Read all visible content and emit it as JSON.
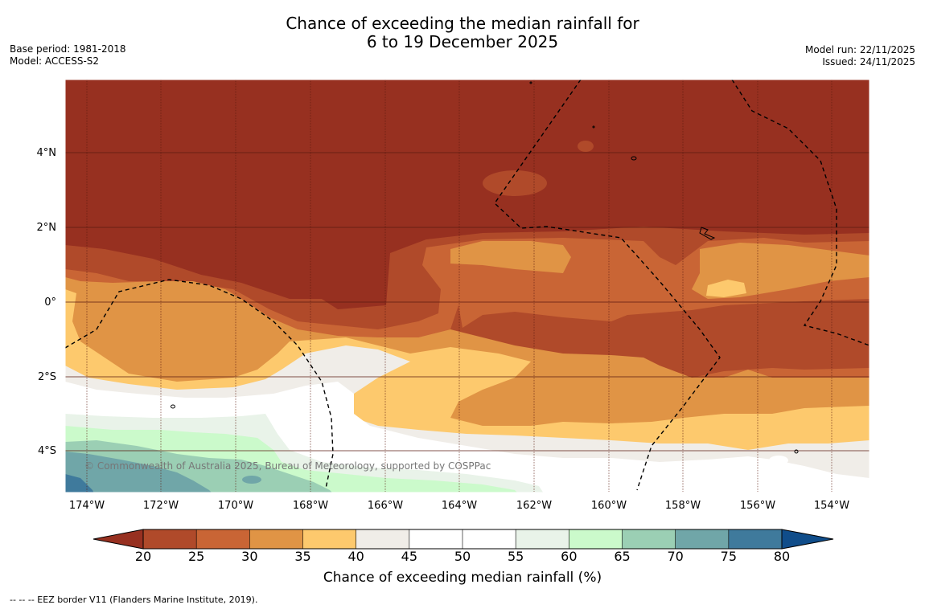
{
  "header": {
    "title_line1": "Chance of exceeding the median rainfall for",
    "title_line2": "6 to 19 December 2025",
    "base_period": "Base period: 1981-2018",
    "model": "Model: ACCESS-S2",
    "model_run": "Model run: 22/11/2025",
    "issued": "Issued: 24/11/2025"
  },
  "map": {
    "lat_labels": [
      "4°N",
      "2°N",
      "0°",
      "2°S",
      "4°S"
    ],
    "lon_labels": [
      "174°W",
      "172°W",
      "170°W",
      "168°W",
      "166°W",
      "164°W",
      "162°W",
      "160°W",
      "158°W",
      "156°W",
      "154°W"
    ],
    "copyright": "© Commonwealth of Australia 2025, Bureau of Meteorology, supported by COSPPac"
  },
  "colorbar": {
    "ticks": [
      "20",
      "25",
      "30",
      "35",
      "40",
      "45",
      "50",
      "55",
      "60",
      "65",
      "70",
      "75",
      "80"
    ],
    "colors": [
      "#973020",
      "#b04a2a",
      "#c96535",
      "#e09445",
      "#fdc96d",
      "#f0ede8",
      "#ffffff",
      "#ffffff",
      "#e9f3e9",
      "#cbfacb",
      "#9bcfb4",
      "#70a6a8",
      "#3f7a9c",
      "#104d8a"
    ],
    "title": "Chance of exceeding median rainfall (%)"
  },
  "footer": {
    "legend": "--  --  -- EEZ border V11 (Flanders Marine Institute, 2019)."
  }
}
